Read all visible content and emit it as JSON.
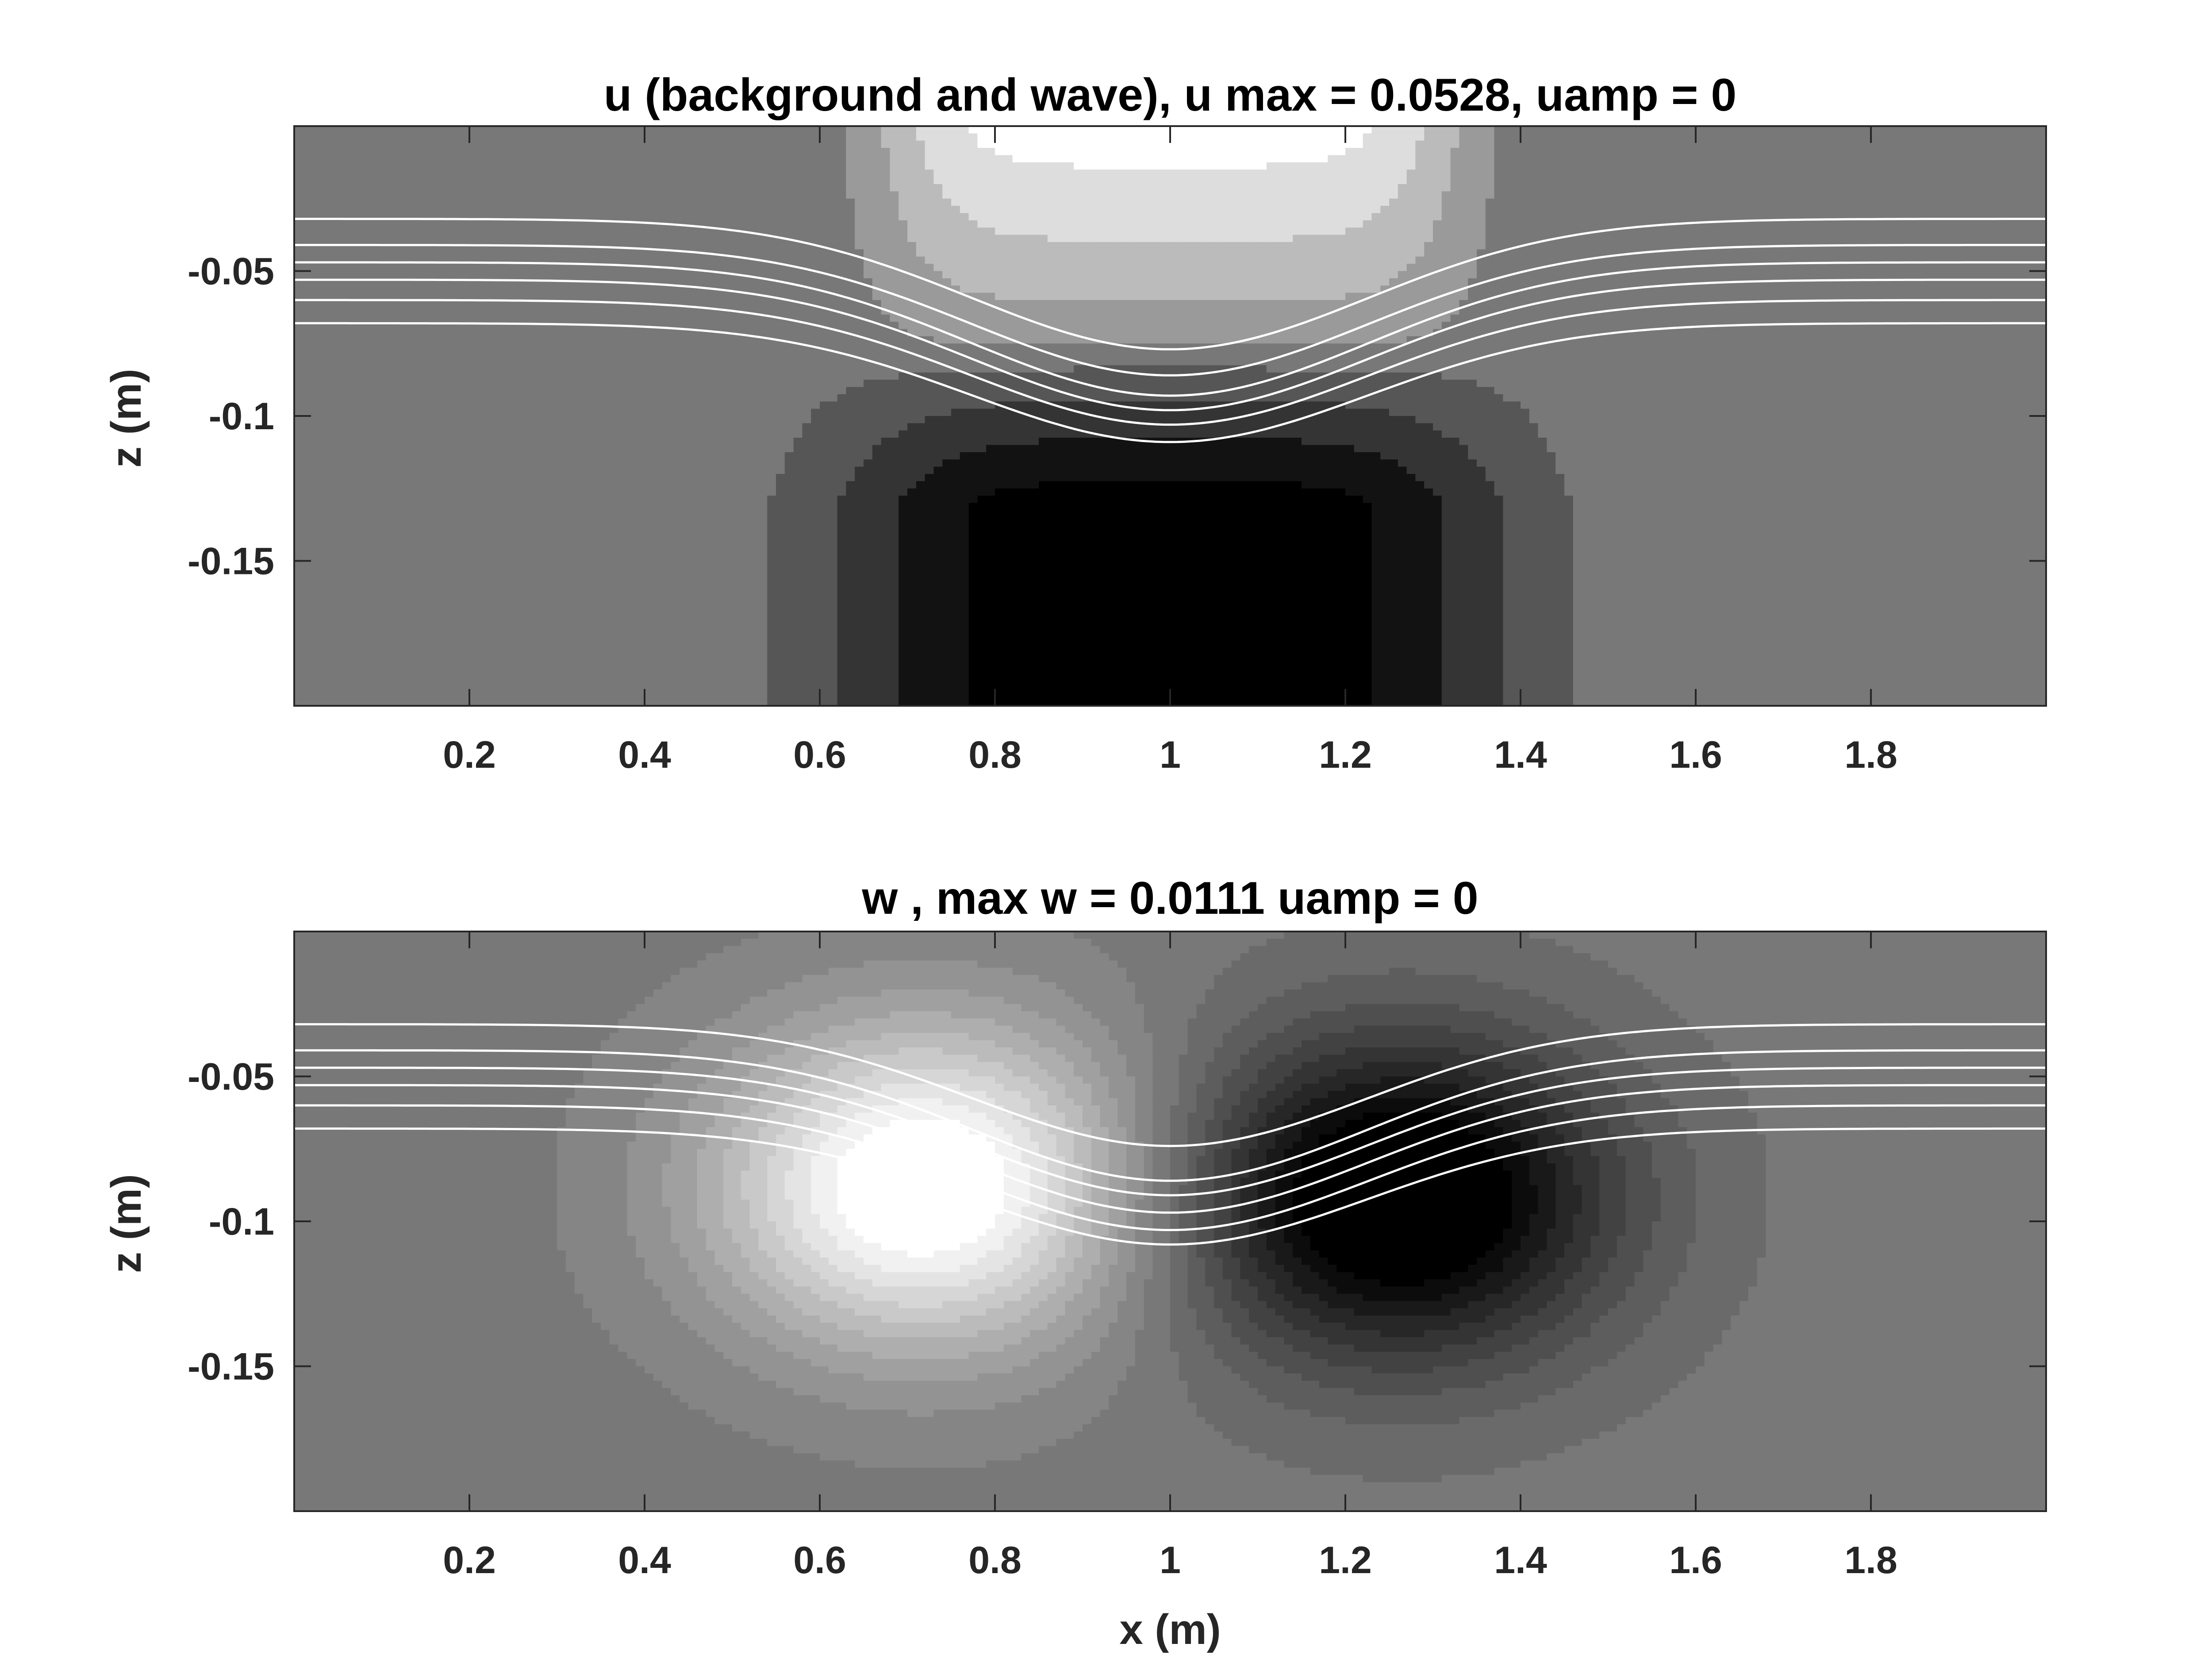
{
  "chart_data": [
    {
      "type": "heatmap",
      "title": "u (background and wave), u max = 0.0528, uamp = 0",
      "xlabel": "",
      "ylabel": "z (m)",
      "xlim": [
        0,
        2
      ],
      "ylim": [
        -0.2,
        0
      ],
      "x_ticks": [
        0.2,
        0.4,
        0.6,
        0.8,
        1,
        1.2,
        1.4,
        1.6,
        1.8
      ],
      "x_tick_labels": [
        "0.2",
        "0.4",
        "0.6",
        "0.8",
        "1",
        "1.2",
        "1.4",
        "1.6",
        "1.8"
      ],
      "y_ticks": [
        -0.05,
        -0.1,
        -0.15
      ],
      "y_tick_labels": [
        "-0.05",
        "-0.1",
        "-0.15"
      ],
      "colormap": "gray",
      "field": {
        "max": 0.0528,
        "center_x": 1.0,
        "sign_change_depth": -0.08,
        "description_upper": "positive lobe near surface",
        "description_lower": "negative lobe at depth"
      },
      "isopycnals": {
        "color": "#ffffff",
        "far_field_depths": [
          -0.032,
          -0.041,
          -0.047,
          -0.053,
          -0.06,
          -0.068
        ],
        "center_depths": [
          -0.077,
          -0.086,
          -0.093,
          -0.098,
          -0.103,
          -0.109
        ],
        "center_x": 1.0
      }
    },
    {
      "type": "heatmap",
      "title": "w , max w = 0.0111 uamp = 0",
      "xlabel": "x (m)",
      "ylabel": "z (m)",
      "xlim": [
        0,
        2
      ],
      "ylim": [
        -0.2,
        0
      ],
      "x_ticks": [
        0.2,
        0.4,
        0.6,
        0.8,
        1,
        1.2,
        1.4,
        1.6,
        1.8
      ],
      "x_tick_labels": [
        "0.2",
        "0.4",
        "0.6",
        "0.8",
        "1",
        "1.2",
        "1.4",
        "1.6",
        "1.8"
      ],
      "y_ticks": [
        -0.05,
        -0.1,
        -0.15
      ],
      "y_tick_labels": [
        "-0.05",
        "-0.1",
        "-0.15"
      ],
      "colormap": "gray",
      "field": {
        "max": 0.0111,
        "positive_center": [
          0.72,
          -0.088
        ],
        "negative_center": [
          1.26,
          -0.092
        ]
      },
      "isopycnals": {
        "color": "#ffffff",
        "far_field_depths": [
          -0.032,
          -0.041,
          -0.047,
          -0.053,
          -0.06,
          -0.068
        ],
        "center_depths": [
          -0.074,
          -0.086,
          -0.091,
          -0.097,
          -0.103,
          -0.108
        ],
        "center_x": 1.0
      }
    }
  ]
}
